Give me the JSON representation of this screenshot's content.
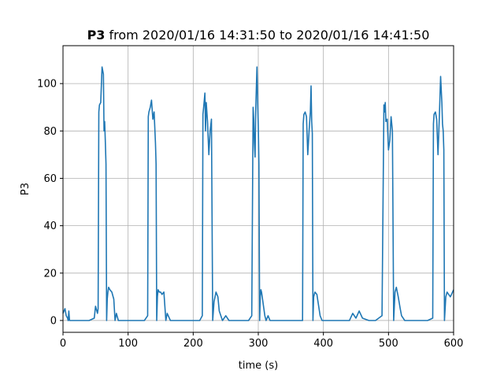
{
  "chart_data": {
    "type": "line",
    "title_bold": "P3",
    "title_rest": " from 2020/01/16 14:31:50 to 2020/01/16 14:41:50",
    "xlabel": "time (s)",
    "ylabel": "P3",
    "xlim": [
      0,
      600
    ],
    "ylim": [
      -5,
      116
    ],
    "xticks": [
      0,
      100,
      200,
      300,
      400,
      500,
      600
    ],
    "yticks": [
      0,
      20,
      40,
      60,
      80,
      100
    ],
    "grid": true,
    "line_color": "#1f77b4",
    "series": [
      {
        "x": [
          0,
          3,
          5,
          7,
          8,
          9,
          10,
          12,
          20,
          30,
          40,
          48,
          50,
          53,
          54,
          55,
          56,
          58,
          60,
          62,
          63,
          64,
          65,
          66,
          67,
          68,
          69,
          70,
          72,
          75,
          78,
          80,
          82,
          85,
          88,
          90,
          95,
          100,
          105,
          110,
          115,
          120,
          125,
          130,
          131,
          132,
          134,
          136,
          138,
          140,
          142,
          143,
          144,
          145,
          146,
          148,
          150,
          152,
          155,
          158,
          160,
          165,
          170,
          180,
          190,
          200,
          205,
          210,
          214,
          215,
          216,
          218,
          219,
          220,
          222,
          224,
          226,
          228,
          230,
          232,
          235,
          238,
          240,
          245,
          250,
          255,
          260,
          270,
          280,
          285,
          290,
          292,
          293,
          294,
          295,
          296,
          297,
          298,
          299,
          300,
          301,
          302,
          303,
          304,
          305,
          307,
          310,
          312,
          315,
          318,
          320,
          325,
          330,
          340,
          350,
          360,
          368,
          369,
          370,
          372,
          374,
          376,
          378,
          380,
          381,
          382,
          383,
          384,
          385,
          387,
          390,
          395,
          398,
          400,
          405,
          410,
          420,
          430,
          440,
          445,
          450,
          455,
          460,
          470,
          480,
          490,
          493,
          494,
          495,
          496,
          498,
          500,
          502,
          504,
          506,
          508,
          510,
          512,
          515,
          518,
          520,
          525,
          530,
          540,
          550,
          560,
          568,
          569,
          570,
          572,
          574,
          576,
          578,
          580,
          582,
          583,
          584,
          585,
          586,
          588,
          590,
          595,
          600
        ],
        "y": [
          3,
          5,
          2,
          1,
          0,
          4,
          0,
          0,
          0,
          0,
          0,
          1,
          6,
          3,
          5,
          88,
          91,
          92,
          107,
          104,
          80,
          84,
          76,
          66,
          0,
          9,
          12,
          14,
          13,
          12,
          9,
          0,
          3,
          0,
          0,
          0,
          0,
          0,
          0,
          0,
          0,
          0,
          0,
          2,
          86,
          88,
          90,
          93,
          85,
          88,
          75,
          66,
          0,
          10,
          13,
          12,
          12,
          11,
          12,
          0,
          3,
          0,
          0,
          0,
          0,
          0,
          0,
          0,
          2,
          87,
          90,
          96,
          80,
          92,
          84,
          70,
          80,
          85,
          0,
          8,
          12,
          10,
          4,
          0,
          2,
          0,
          0,
          0,
          0,
          0,
          2,
          90,
          85,
          75,
          69,
          88,
          98,
          107,
          92,
          82,
          66,
          0,
          10,
          13,
          12,
          8,
          2,
          0,
          2,
          0,
          0,
          0,
          0,
          0,
          0,
          0,
          0,
          83,
          87,
          88,
          86,
          70,
          80,
          88,
          99,
          84,
          79,
          0,
          10,
          12,
          11,
          2,
          0,
          0,
          0,
          0,
          0,
          0,
          0,
          3,
          1,
          4,
          1,
          0,
          0,
          2,
          91,
          88,
          92,
          84,
          85,
          72,
          76,
          86,
          80,
          0,
          12,
          14,
          10,
          5,
          2,
          0,
          0,
          0,
          0,
          0,
          1,
          83,
          87,
          88,
          85,
          70,
          85,
          103,
          92,
          83,
          80,
          72,
          0,
          10,
          12,
          10,
          13
        ]
      }
    ]
  }
}
